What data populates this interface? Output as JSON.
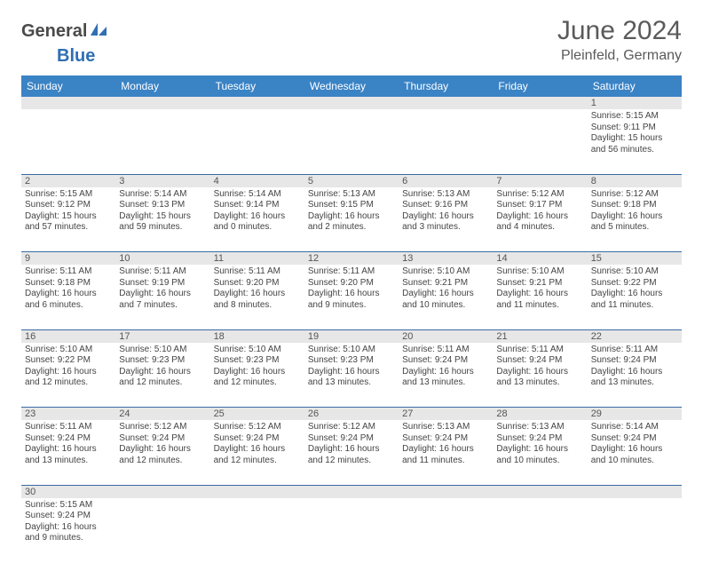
{
  "logo": {
    "text1": "General",
    "text2": "Blue"
  },
  "title": "June 2024",
  "location": "Pleinfeld, Germany",
  "header_bg": "#3a83c5",
  "header_fg": "#ffffff",
  "daynum_bg": "#e7e7e7",
  "border_color": "#3a6ba5",
  "dayHeaders": [
    "Sunday",
    "Monday",
    "Tuesday",
    "Wednesday",
    "Thursday",
    "Friday",
    "Saturday"
  ],
  "weeks": [
    {
      "nums": [
        "",
        "",
        "",
        "",
        "",
        "",
        "1"
      ],
      "cells": [
        null,
        null,
        null,
        null,
        null,
        null,
        {
          "sunrise": "Sunrise: 5:15 AM",
          "sunset": "Sunset: 9:11 PM",
          "day1": "Daylight: 15 hours",
          "day2": "and 56 minutes."
        }
      ]
    },
    {
      "nums": [
        "2",
        "3",
        "4",
        "5",
        "6",
        "7",
        "8"
      ],
      "cells": [
        {
          "sunrise": "Sunrise: 5:15 AM",
          "sunset": "Sunset: 9:12 PM",
          "day1": "Daylight: 15 hours",
          "day2": "and 57 minutes."
        },
        {
          "sunrise": "Sunrise: 5:14 AM",
          "sunset": "Sunset: 9:13 PM",
          "day1": "Daylight: 15 hours",
          "day2": "and 59 minutes."
        },
        {
          "sunrise": "Sunrise: 5:14 AM",
          "sunset": "Sunset: 9:14 PM",
          "day1": "Daylight: 16 hours",
          "day2": "and 0 minutes."
        },
        {
          "sunrise": "Sunrise: 5:13 AM",
          "sunset": "Sunset: 9:15 PM",
          "day1": "Daylight: 16 hours",
          "day2": "and 2 minutes."
        },
        {
          "sunrise": "Sunrise: 5:13 AM",
          "sunset": "Sunset: 9:16 PM",
          "day1": "Daylight: 16 hours",
          "day2": "and 3 minutes."
        },
        {
          "sunrise": "Sunrise: 5:12 AM",
          "sunset": "Sunset: 9:17 PM",
          "day1": "Daylight: 16 hours",
          "day2": "and 4 minutes."
        },
        {
          "sunrise": "Sunrise: 5:12 AM",
          "sunset": "Sunset: 9:18 PM",
          "day1": "Daylight: 16 hours",
          "day2": "and 5 minutes."
        }
      ]
    },
    {
      "nums": [
        "9",
        "10",
        "11",
        "12",
        "13",
        "14",
        "15"
      ],
      "cells": [
        {
          "sunrise": "Sunrise: 5:11 AM",
          "sunset": "Sunset: 9:18 PM",
          "day1": "Daylight: 16 hours",
          "day2": "and 6 minutes."
        },
        {
          "sunrise": "Sunrise: 5:11 AM",
          "sunset": "Sunset: 9:19 PM",
          "day1": "Daylight: 16 hours",
          "day2": "and 7 minutes."
        },
        {
          "sunrise": "Sunrise: 5:11 AM",
          "sunset": "Sunset: 9:20 PM",
          "day1": "Daylight: 16 hours",
          "day2": "and 8 minutes."
        },
        {
          "sunrise": "Sunrise: 5:11 AM",
          "sunset": "Sunset: 9:20 PM",
          "day1": "Daylight: 16 hours",
          "day2": "and 9 minutes."
        },
        {
          "sunrise": "Sunrise: 5:10 AM",
          "sunset": "Sunset: 9:21 PM",
          "day1": "Daylight: 16 hours",
          "day2": "and 10 minutes."
        },
        {
          "sunrise": "Sunrise: 5:10 AM",
          "sunset": "Sunset: 9:21 PM",
          "day1": "Daylight: 16 hours",
          "day2": "and 11 minutes."
        },
        {
          "sunrise": "Sunrise: 5:10 AM",
          "sunset": "Sunset: 9:22 PM",
          "day1": "Daylight: 16 hours",
          "day2": "and 11 minutes."
        }
      ]
    },
    {
      "nums": [
        "16",
        "17",
        "18",
        "19",
        "20",
        "21",
        "22"
      ],
      "cells": [
        {
          "sunrise": "Sunrise: 5:10 AM",
          "sunset": "Sunset: 9:22 PM",
          "day1": "Daylight: 16 hours",
          "day2": "and 12 minutes."
        },
        {
          "sunrise": "Sunrise: 5:10 AM",
          "sunset": "Sunset: 9:23 PM",
          "day1": "Daylight: 16 hours",
          "day2": "and 12 minutes."
        },
        {
          "sunrise": "Sunrise: 5:10 AM",
          "sunset": "Sunset: 9:23 PM",
          "day1": "Daylight: 16 hours",
          "day2": "and 12 minutes."
        },
        {
          "sunrise": "Sunrise: 5:10 AM",
          "sunset": "Sunset: 9:23 PM",
          "day1": "Daylight: 16 hours",
          "day2": "and 13 minutes."
        },
        {
          "sunrise": "Sunrise: 5:11 AM",
          "sunset": "Sunset: 9:24 PM",
          "day1": "Daylight: 16 hours",
          "day2": "and 13 minutes."
        },
        {
          "sunrise": "Sunrise: 5:11 AM",
          "sunset": "Sunset: 9:24 PM",
          "day1": "Daylight: 16 hours",
          "day2": "and 13 minutes."
        },
        {
          "sunrise": "Sunrise: 5:11 AM",
          "sunset": "Sunset: 9:24 PM",
          "day1": "Daylight: 16 hours",
          "day2": "and 13 minutes."
        }
      ]
    },
    {
      "nums": [
        "23",
        "24",
        "25",
        "26",
        "27",
        "28",
        "29"
      ],
      "cells": [
        {
          "sunrise": "Sunrise: 5:11 AM",
          "sunset": "Sunset: 9:24 PM",
          "day1": "Daylight: 16 hours",
          "day2": "and 13 minutes."
        },
        {
          "sunrise": "Sunrise: 5:12 AM",
          "sunset": "Sunset: 9:24 PM",
          "day1": "Daylight: 16 hours",
          "day2": "and 12 minutes."
        },
        {
          "sunrise": "Sunrise: 5:12 AM",
          "sunset": "Sunset: 9:24 PM",
          "day1": "Daylight: 16 hours",
          "day2": "and 12 minutes."
        },
        {
          "sunrise": "Sunrise: 5:12 AM",
          "sunset": "Sunset: 9:24 PM",
          "day1": "Daylight: 16 hours",
          "day2": "and 12 minutes."
        },
        {
          "sunrise": "Sunrise: 5:13 AM",
          "sunset": "Sunset: 9:24 PM",
          "day1": "Daylight: 16 hours",
          "day2": "and 11 minutes."
        },
        {
          "sunrise": "Sunrise: 5:13 AM",
          "sunset": "Sunset: 9:24 PM",
          "day1": "Daylight: 16 hours",
          "day2": "and 10 minutes."
        },
        {
          "sunrise": "Sunrise: 5:14 AM",
          "sunset": "Sunset: 9:24 PM",
          "day1": "Daylight: 16 hours",
          "day2": "and 10 minutes."
        }
      ]
    },
    {
      "nums": [
        "30",
        "",
        "",
        "",
        "",
        "",
        ""
      ],
      "cells": [
        {
          "sunrise": "Sunrise: 5:15 AM",
          "sunset": "Sunset: 9:24 PM",
          "day1": "Daylight: 16 hours",
          "day2": "and 9 minutes."
        },
        null,
        null,
        null,
        null,
        null,
        null
      ]
    }
  ]
}
